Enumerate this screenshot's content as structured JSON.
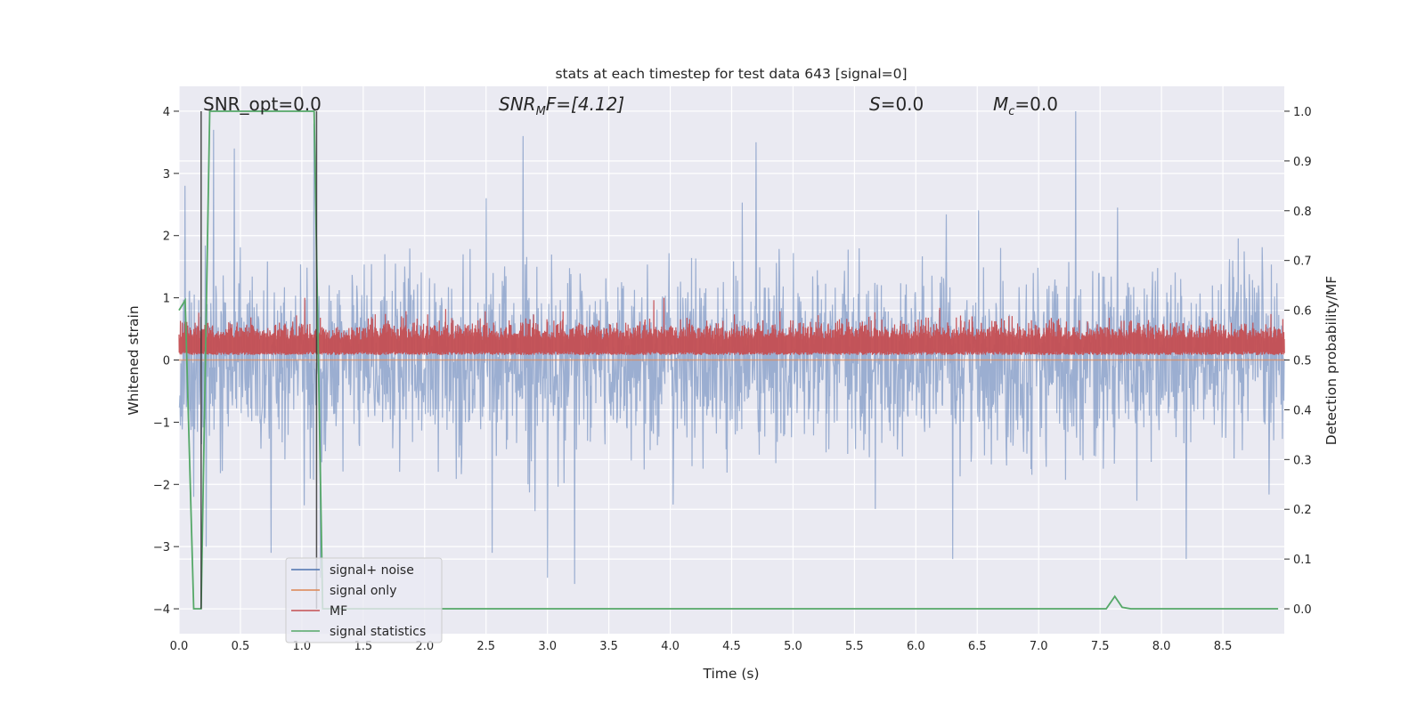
{
  "chart_data": {
    "type": "line",
    "title": "stats at each timestep for test data 643 [signal=0]",
    "xlabel": "Time (s)",
    "ylabel": "Whitened strain",
    "y2label": "Detection probability/MF",
    "xlim": [
      0.0,
      9.0
    ],
    "ylim": [
      -4.4,
      4.4
    ],
    "y2lim": [
      -0.05,
      1.05
    ],
    "grid": true,
    "legend_position": "lower-left",
    "x_ticks": [
      "0.0",
      "0.5",
      "1.0",
      "1.5",
      "2.0",
      "2.5",
      "3.0",
      "3.5",
      "4.0",
      "4.5",
      "5.0",
      "5.5",
      "6.0",
      "6.5",
      "7.0",
      "7.5",
      "8.0",
      "8.5"
    ],
    "y_ticks": [
      "4",
      "3",
      "2",
      "1",
      "0",
      "−1",
      "−2",
      "−3",
      "−4"
    ],
    "y2_ticks": [
      "1.0",
      "0.9",
      "0.8",
      "0.7",
      "0.6",
      "0.5",
      "0.4",
      "0.3",
      "0.2",
      "0.1",
      "0.0"
    ],
    "annotations": {
      "snr_opt": "SNR_opt=0.0",
      "snr_mf_main": "SNR",
      "snr_mf_sub": "M",
      "snr_mf_rest": "F=[4.12]",
      "s_italic": "S",
      "s_rest": "=0.0",
      "mc_italic": "M",
      "mc_sub": "c",
      "mc_rest": "=0.0"
    },
    "vertical_markers_x": [
      0.18,
      1.12
    ],
    "series": [
      {
        "name": "signal+ noise",
        "axis": "left",
        "color": "#4c72b0",
        "summary": "white noise, roughly ±1.5 with spikes up to about 4.0 and down to about −3.6",
        "spikes": [
          [
            0.05,
            2.8
          ],
          [
            0.12,
            -2.2
          ],
          [
            0.22,
            -3.0
          ],
          [
            0.28,
            3.7
          ],
          [
            0.45,
            3.4
          ],
          [
            0.75,
            -3.1
          ],
          [
            1.1,
            3.8
          ],
          [
            1.15,
            -3.5
          ],
          [
            2.55,
            -3.1
          ],
          [
            2.8,
            3.6
          ],
          [
            3.0,
            -3.5
          ],
          [
            3.22,
            -3.6
          ],
          [
            4.7,
            3.5
          ],
          [
            6.3,
            -3.2
          ],
          [
            7.3,
            4.0
          ],
          [
            8.2,
            -3.2
          ]
        ]
      },
      {
        "name": "signal only",
        "axis": "left",
        "color": "#dd8452",
        "x": [
          0.0,
          9.0
        ],
        "y": [
          0.0,
          0.0
        ]
      },
      {
        "name": "MF",
        "axis": "left",
        "color": "#c44e52",
        "summary": "matched-filter output, roughly 0.05 to 0.8 with occasional peaks near 1.0"
      },
      {
        "name": "signal statistics",
        "axis": "right",
        "color": "#55a868",
        "x": [
          0.0,
          0.05,
          0.12,
          0.18,
          0.25,
          1.1,
          1.17,
          1.25,
          7.55,
          7.62,
          7.68,
          7.75,
          8.95
        ],
        "y": [
          0.6,
          0.62,
          0.0,
          0.0,
          1.0,
          1.0,
          0.0,
          0.0,
          0.0,
          0.025,
          0.003,
          0.0,
          0.0
        ]
      }
    ]
  }
}
